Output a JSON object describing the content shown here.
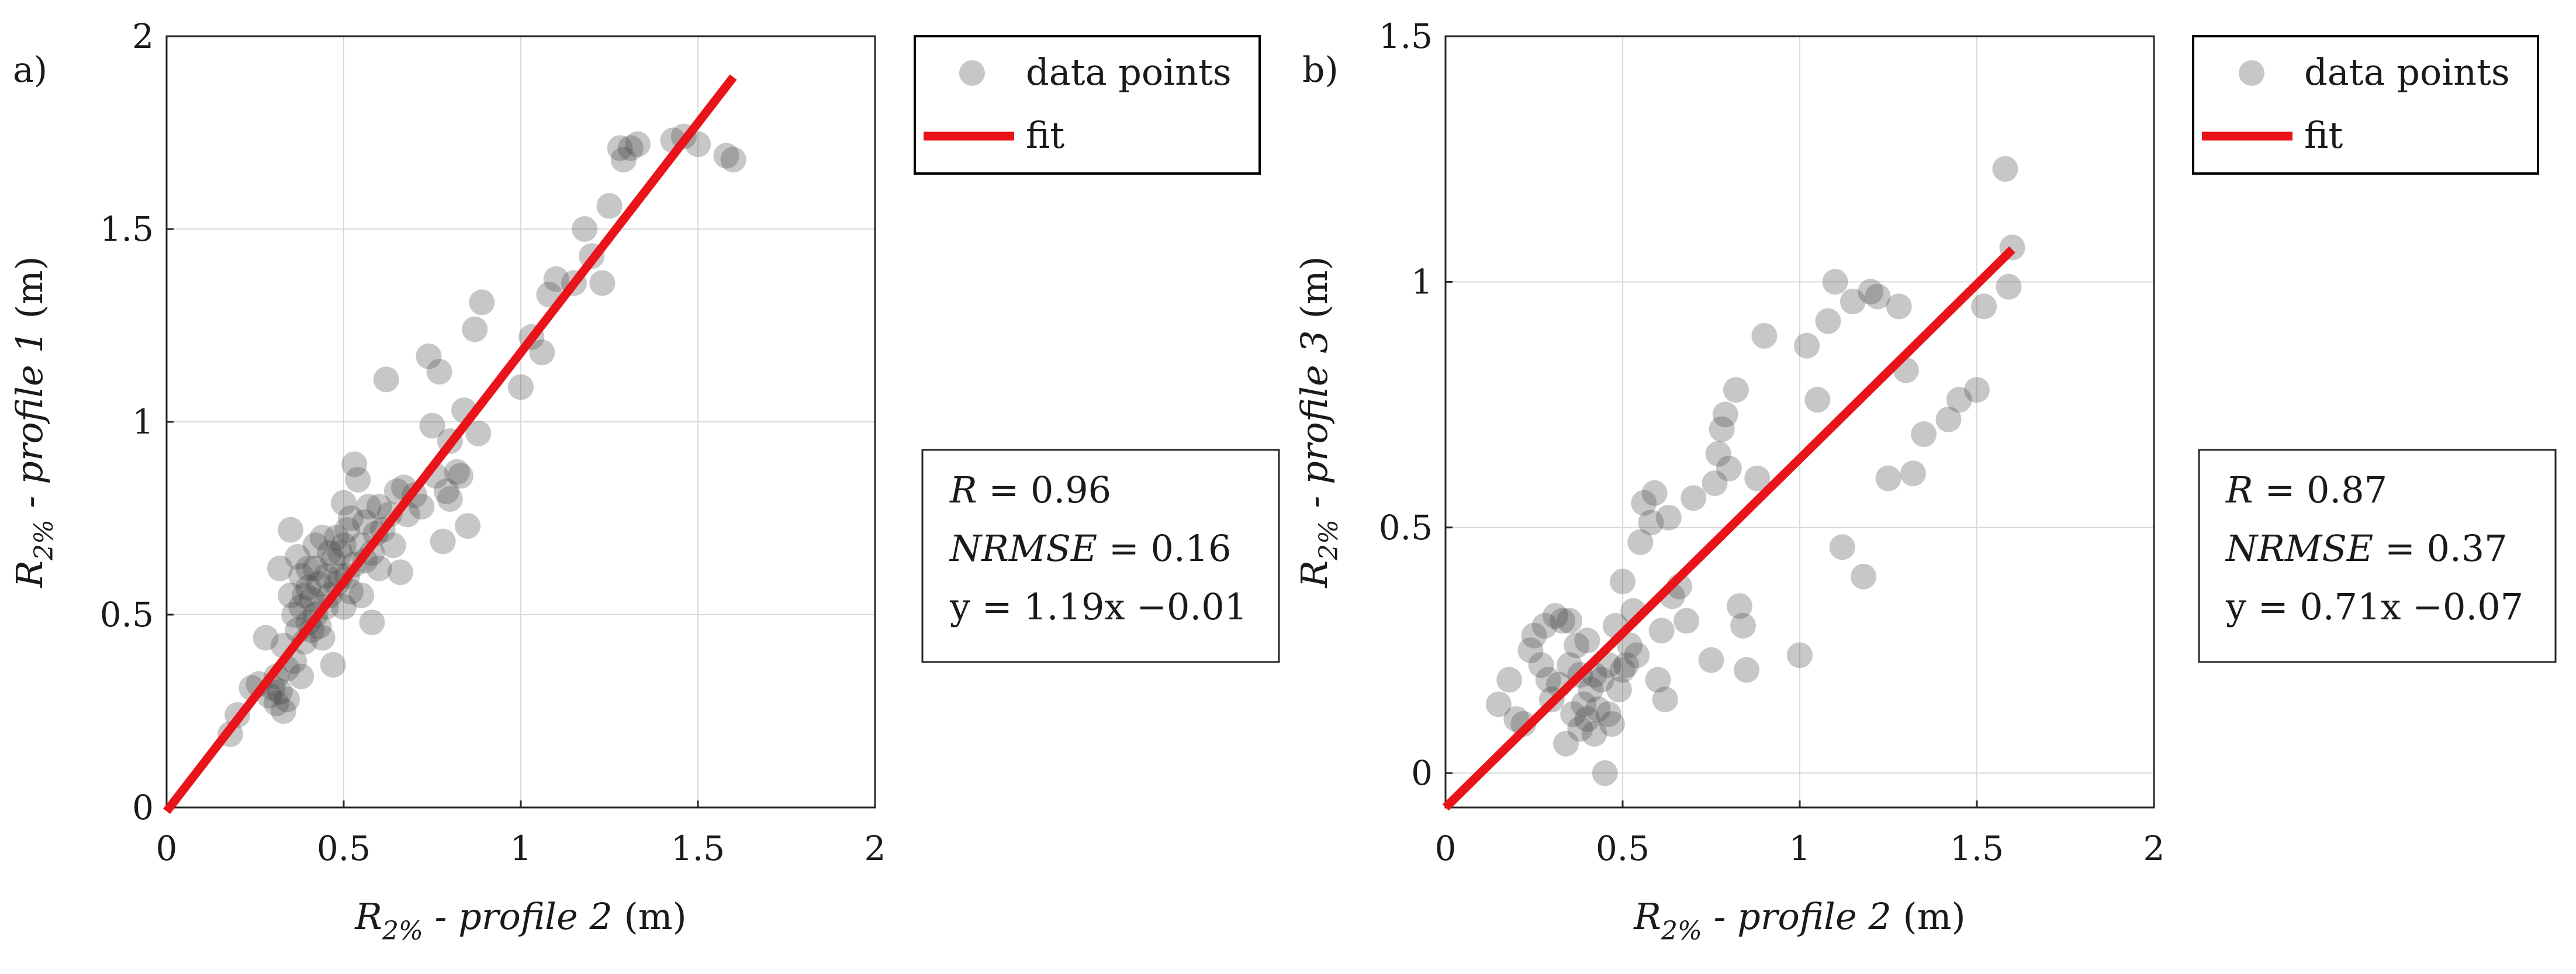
{
  "colors": {
    "points": "#444444",
    "fit": "#e8141a",
    "axis": "#262626",
    "grid": "#d9d9d9"
  },
  "legend_entries": {
    "points": "data points",
    "fit": "fit"
  },
  "chart_data": [
    {
      "type": "scatter",
      "panel_label": "a)",
      "title": "",
      "xlabel": {
        "base": "R",
        "sub": "2%",
        "profile": " - profile 2",
        "unit": " (m)"
      },
      "ylabel": {
        "base": "R",
        "sub": "2%",
        "profile": " - profile 1",
        "unit": " (m)"
      },
      "xlim": [
        0,
        2
      ],
      "ylim": [
        0,
        2
      ],
      "xticks": [
        0,
        0.5,
        1,
        1.5,
        2
      ],
      "xtick_labels": [
        "0",
        "0.5",
        "1",
        "1.5",
        "2"
      ],
      "yticks": [
        0,
        0.5,
        1,
        1.5,
        2
      ],
      "ytick_labels": [
        "0",
        "0.5",
        "1",
        "1.5",
        "2"
      ],
      "grid": true,
      "legend_position": "outside top-right",
      "fit": {
        "slope": 1.19,
        "intercept": -0.01,
        "x_range": [
          0,
          1.6
        ]
      },
      "stats": {
        "r": {
          "label": "R",
          "value": " = 0.96"
        },
        "nrmse": {
          "label": "NRMSE",
          "value": " = 0.16"
        },
        "eq": "y = 1.19x −0.01"
      },
      "series": [
        {
          "name": "data points",
          "x": [
            0.18,
            0.2,
            0.24,
            0.26,
            0.28,
            0.29,
            0.3,
            0.31,
            0.31,
            0.32,
            0.32,
            0.33,
            0.33,
            0.34,
            0.34,
            0.35,
            0.35,
            0.36,
            0.36,
            0.37,
            0.37,
            0.38,
            0.38,
            0.38,
            0.39,
            0.39,
            0.4,
            0.4,
            0.4,
            0.41,
            0.41,
            0.42,
            0.42,
            0.42,
            0.43,
            0.43,
            0.44,
            0.44,
            0.45,
            0.45,
            0.46,
            0.46,
            0.47,
            0.47,
            0.48,
            0.48,
            0.49,
            0.49,
            0.5,
            0.5,
            0.5,
            0.51,
            0.51,
            0.52,
            0.52,
            0.53,
            0.53,
            0.54,
            0.55,
            0.55,
            0.56,
            0.56,
            0.57,
            0.58,
            0.58,
            0.59,
            0.6,
            0.6,
            0.61,
            0.62,
            0.63,
            0.64,
            0.65,
            0.66,
            0.67,
            0.68,
            0.7,
            0.72,
            0.74,
            0.75,
            0.76,
            0.77,
            0.78,
            0.79,
            0.8,
            0.8,
            0.82,
            0.83,
            0.84,
            0.85,
            0.87,
            0.88,
            0.89,
            1.0,
            1.03,
            1.06,
            1.08,
            1.1,
            1.15,
            1.18,
            1.2,
            1.23,
            1.25,
            1.28,
            1.29,
            1.31,
            1.33,
            1.43,
            1.46,
            1.5,
            1.58,
            1.6
          ],
          "y": [
            0.19,
            0.24,
            0.31,
            0.32,
            0.44,
            0.29,
            0.31,
            0.27,
            0.34,
            0.62,
            0.3,
            0.25,
            0.42,
            0.28,
            0.36,
            0.72,
            0.55,
            0.38,
            0.5,
            0.46,
            0.65,
            0.52,
            0.34,
            0.6,
            0.55,
            0.43,
            0.48,
            0.57,
            0.62,
            0.54,
            0.46,
            0.68,
            0.5,
            0.62,
            0.58,
            0.47,
            0.7,
            0.44,
            0.6,
            0.52,
            0.66,
            0.55,
            0.37,
            0.64,
            0.7,
            0.58,
            0.66,
            0.6,
            0.79,
            0.52,
            0.68,
            0.72,
            0.6,
            0.75,
            0.56,
            0.89,
            0.63,
            0.85,
            0.68,
            0.55,
            0.74,
            0.64,
            0.78,
            0.66,
            0.48,
            0.71,
            0.78,
            0.62,
            0.72,
            1.11,
            0.76,
            0.68,
            0.82,
            0.61,
            0.83,
            0.76,
            0.81,
            0.78,
            1.17,
            0.99,
            0.86,
            1.13,
            0.69,
            0.82,
            0.95,
            0.8,
            0.87,
            0.86,
            1.03,
            0.73,
            1.24,
            0.97,
            1.31,
            1.09,
            1.22,
            1.18,
            1.33,
            1.37,
            1.36,
            1.5,
            1.43,
            1.36,
            1.56,
            1.71,
            1.68,
            1.71,
            1.72,
            1.73,
            1.74,
            1.72,
            1.69,
            1.68
          ]
        }
      ]
    },
    {
      "type": "scatter",
      "panel_label": "b)",
      "title": "",
      "xlabel": {
        "base": "R",
        "sub": "2%",
        "profile": " - profile 2",
        "unit": " (m)"
      },
      "ylabel": {
        "base": "R",
        "sub": "2%",
        "profile": " - profile 3",
        "unit": " (m)"
      },
      "xlim": [
        0,
        2
      ],
      "ylim": [
        -0.07,
        1.5
      ],
      "xticks": [
        0,
        0.5,
        1,
        1.5,
        2
      ],
      "xtick_labels": [
        "0",
        "0.5",
        "1",
        "1.5",
        "2"
      ],
      "yticks": [
        0,
        0.5,
        1,
        1.5
      ],
      "ytick_labels": [
        "0",
        "0.5",
        "1",
        "1.5"
      ],
      "grid": true,
      "legend_position": "outside top-right",
      "fit": {
        "slope": 0.71,
        "intercept": -0.07,
        "x_range": [
          0,
          1.6
        ]
      },
      "stats": {
        "r": {
          "label": "R",
          "value": " = 0.87"
        },
        "nrmse": {
          "label": "NRMSE",
          "value": " = 0.37"
        },
        "eq": "y = 0.71x −0.07"
      },
      "series": [
        {
          "name": "data points",
          "x": [
            0.15,
            0.18,
            0.2,
            0.22,
            0.24,
            0.25,
            0.27,
            0.28,
            0.29,
            0.3,
            0.31,
            0.32,
            0.33,
            0.34,
            0.35,
            0.35,
            0.36,
            0.37,
            0.38,
            0.38,
            0.39,
            0.4,
            0.4,
            0.41,
            0.42,
            0.42,
            0.43,
            0.44,
            0.45,
            0.46,
            0.46,
            0.47,
            0.48,
            0.49,
            0.5,
            0.5,
            0.51,
            0.52,
            0.53,
            0.54,
            0.55,
            0.56,
            0.58,
            0.59,
            0.6,
            0.61,
            0.62,
            0.63,
            0.64,
            0.66,
            0.68,
            0.7,
            0.75,
            0.76,
            0.77,
            0.78,
            0.79,
            0.8,
            0.82,
            0.83,
            0.84,
            0.85,
            0.88,
            0.9,
            1.0,
            1.02,
            1.05,
            1.08,
            1.1,
            1.12,
            1.15,
            1.18,
            1.2,
            1.22,
            1.25,
            1.28,
            1.3,
            1.32,
            1.35,
            1.42,
            1.45,
            1.5,
            1.52,
            1.58,
            1.59,
            1.6
          ],
          "y": [
            0.14,
            0.19,
            0.11,
            0.1,
            0.25,
            0.28,
            0.22,
            0.3,
            0.19,
            0.15,
            0.32,
            0.18,
            0.31,
            0.06,
            0.22,
            0.31,
            0.12,
            0.26,
            0.09,
            0.2,
            0.14,
            0.11,
            0.27,
            0.17,
            0.08,
            0.2,
            0.13,
            0.19,
            0.0,
            0.22,
            0.12,
            0.1,
            0.3,
            0.17,
            0.21,
            0.39,
            0.22,
            0.26,
            0.33,
            0.24,
            0.47,
            0.55,
            0.51,
            0.57,
            0.19,
            0.29,
            0.15,
            0.52,
            0.36,
            0.38,
            0.31,
            0.56,
            0.23,
            0.59,
            0.65,
            0.7,
            0.73,
            0.62,
            0.78,
            0.34,
            0.3,
            0.21,
            0.6,
            0.89,
            0.24,
            0.87,
            0.76,
            0.92,
            1.0,
            0.46,
            0.96,
            0.4,
            0.98,
            0.97,
            0.6,
            0.95,
            0.82,
            0.61,
            0.69,
            0.72,
            0.76,
            0.78,
            0.95,
            1.23,
            0.99,
            1.07
          ]
        }
      ]
    }
  ]
}
